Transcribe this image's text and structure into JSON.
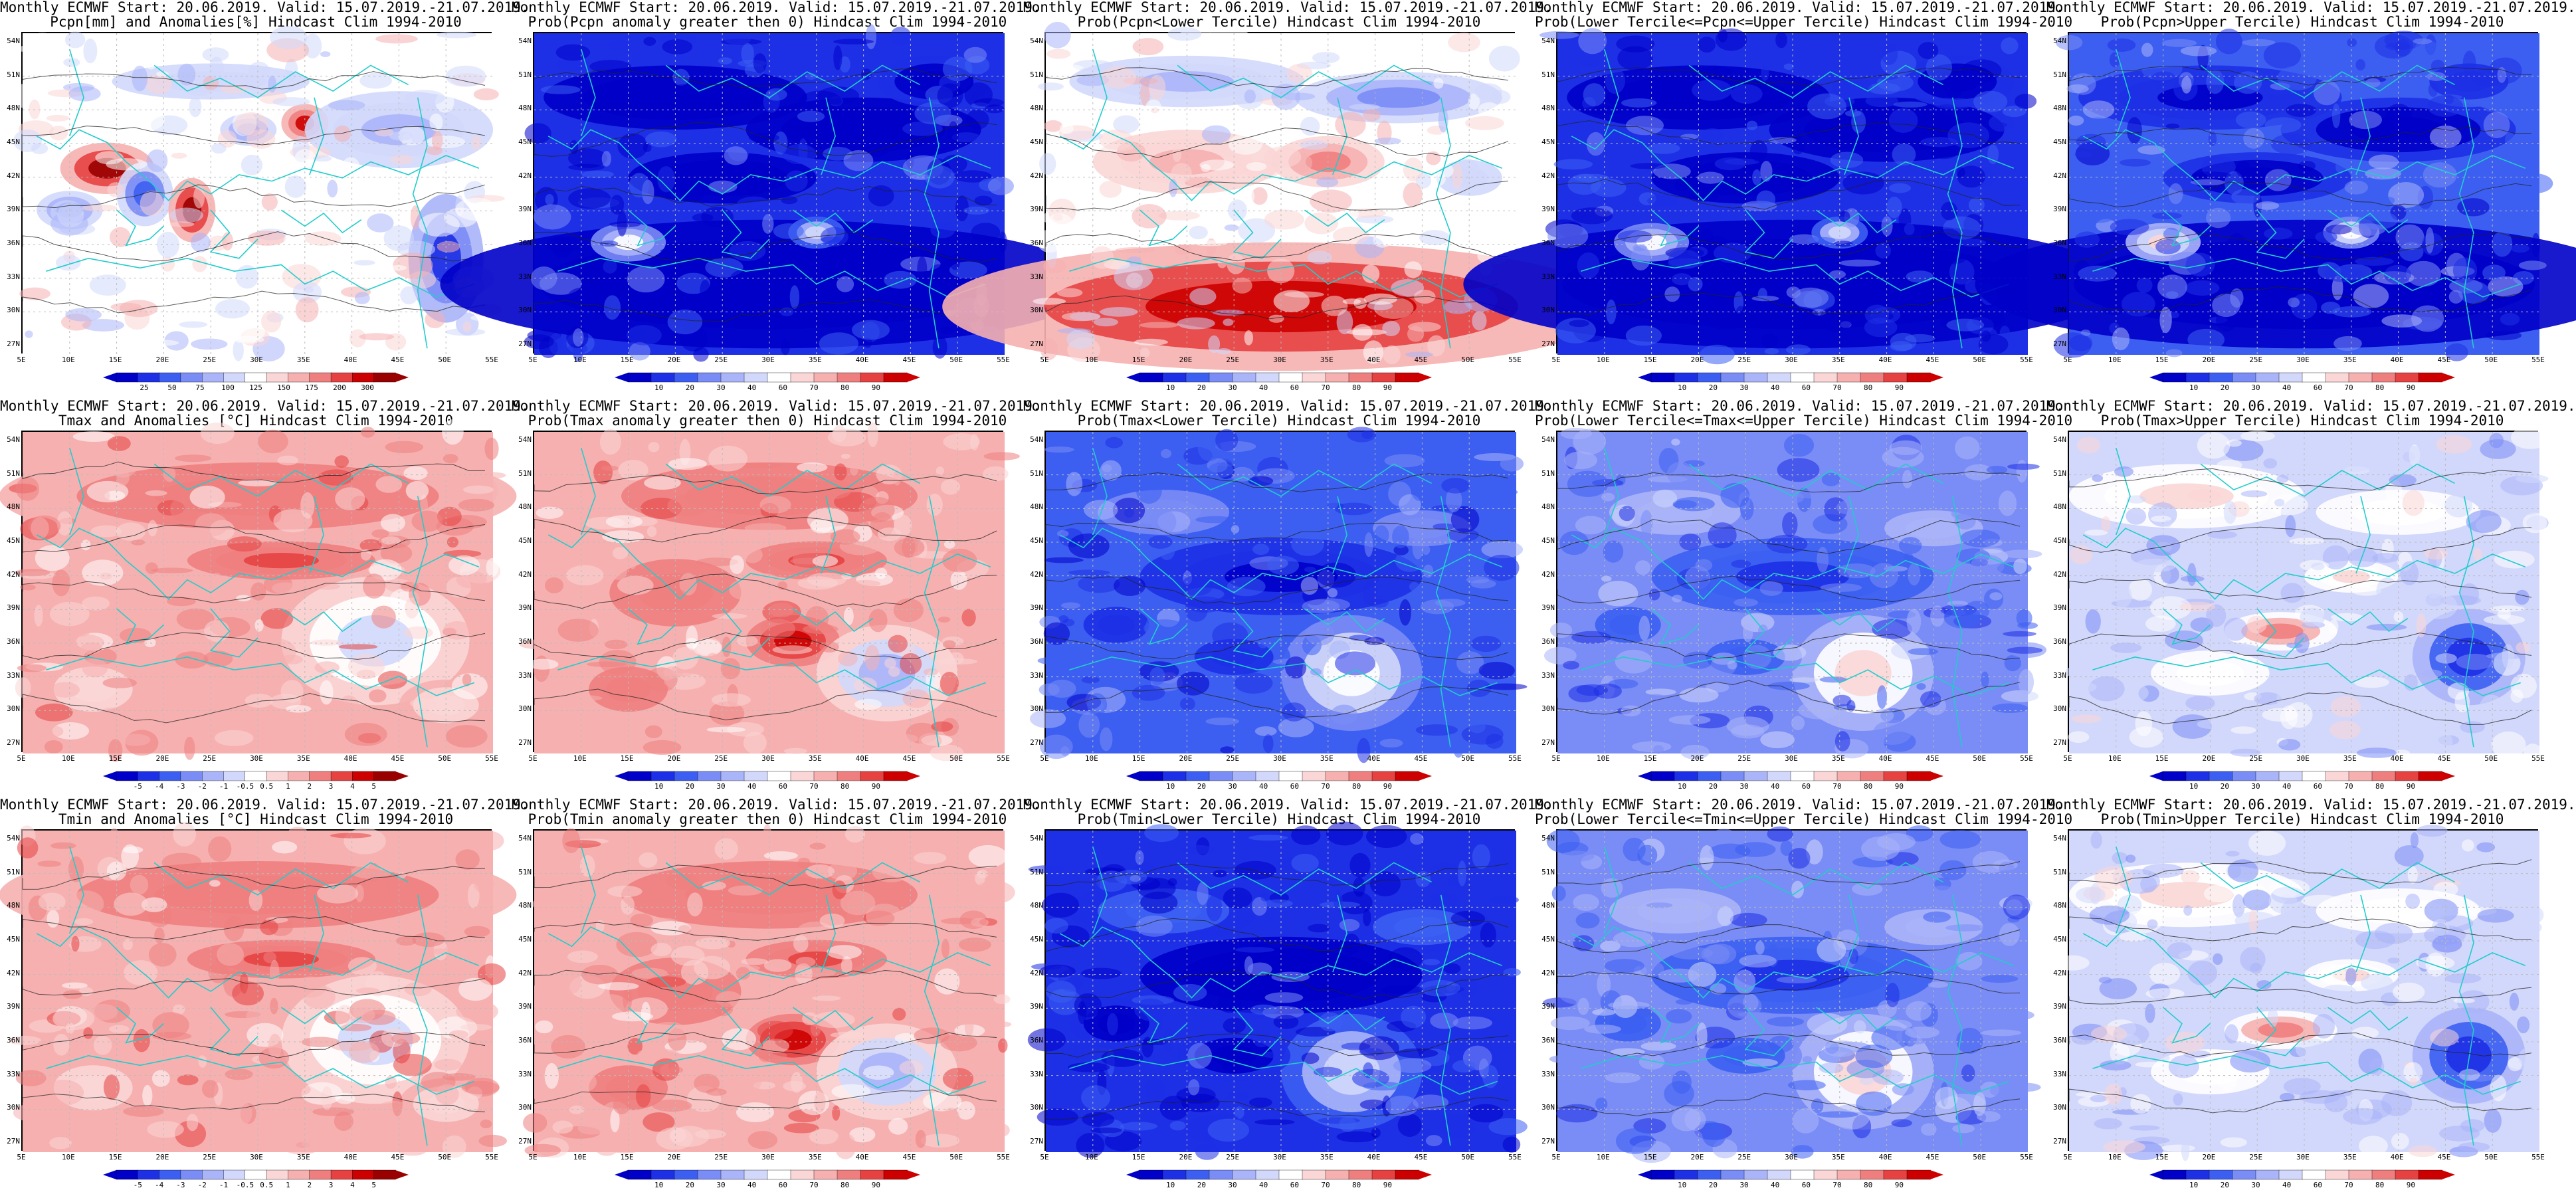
{
  "palettes": {
    "anom": [
      "#0000c8",
      "#1d30e6",
      "#3c5ff2",
      "#7a8cf5",
      "#aab4f9",
      "#d2d8fb",
      "#ffffff",
      "#fbd6d6",
      "#f6b0b0",
      "#ef7f7f",
      "#e64242",
      "#cc0000",
      "#990000"
    ],
    "prob": [
      "#0000c8",
      "#1d30e6",
      "#3c5ff2",
      "#7a8cf5",
      "#aab4f9",
      "#d2d8fb",
      "#ffffff",
      "#fbd6d6",
      "#f6b0b0",
      "#ef7f7f",
      "#e64242",
      "#cc0000"
    ]
  },
  "colors": {
    "coast": "#22cccc",
    "contour": "#222222",
    "grid": "#bbbbbb"
  },
  "lat_labels": [
    "54N",
    "51N",
    "48N",
    "45N",
    "42N",
    "39N",
    "36N",
    "33N",
    "30N",
    "27N"
  ],
  "lon_labels": [
    "5E",
    "10E",
    "15E",
    "20E",
    "25E",
    "30E",
    "35E",
    "40E",
    "45E",
    "50E",
    "55E"
  ],
  "panels": [
    {
      "title1": "Monthly ECMWF Start: 20.06.2019. Valid: 15.07.2019.-21.07.2019.",
      "title2": "Pcpn[mm] and Anomalies[%] Hindcast Clim 1994-2010",
      "palette": "anom",
      "base": 6,
      "pattern": "pcpn_anom",
      "ticks": [
        "25",
        "50",
        "75",
        "100",
        "125",
        "150",
        "175",
        "200",
        "300"
      ]
    },
    {
      "title1": "Monthly ECMWF Start: 20.06.2019. Valid: 15.07.2019.-21.07.2019.",
      "title2": "Prob(Pcpn anomaly greater then 0) Hindcast Clim 1994-2010",
      "palette": "prob",
      "base": 1,
      "pattern": "south_low",
      "ticks": [
        "10",
        "20",
        "30",
        "40",
        "60",
        "70",
        "80",
        "90"
      ]
    },
    {
      "title1": "Monthly ECMWF Start: 20.06.2019. Valid: 15.07.2019.-21.07.2019.",
      "title2": "Prob(Pcpn<Lower Tercile) Hindcast Clim 1994-2010",
      "palette": "prob",
      "base": 6,
      "pattern": "south_high",
      "ticks": [
        "10",
        "20",
        "30",
        "40",
        "60",
        "70",
        "80",
        "90"
      ]
    },
    {
      "title1": "Monthly ECMWF Start: 20.06.2019. Valid: 15.07.2019.-21.07.2019.",
      "title2": "Prob(Lower Tercile<=Pcpn<=Upper Tercile) Hindcast Clim 1994-2010",
      "palette": "prob",
      "base": 1,
      "pattern": "south_low",
      "ticks": [
        "10",
        "20",
        "30",
        "40",
        "60",
        "70",
        "80",
        "90"
      ]
    },
    {
      "title1": "Monthly ECMWF Start: 20.06.2019. Valid: 15.07.2019.-21.07.2019.",
      "title2": "Prob(Pcpn>Upper Tercile) Hindcast Clim 1994-2010",
      "palette": "prob",
      "base": 2,
      "pattern": "south_low",
      "ticks": [
        "10",
        "20",
        "30",
        "40",
        "60",
        "70",
        "80",
        "90"
      ]
    },
    {
      "title1": "Monthly ECMWF Start: 20.06.2019. Valid: 15.07.2019.-21.07.2019.",
      "title2": "Tmax and Anomalies [°C] Hindcast Clim 1994-2010",
      "palette": "anom",
      "base": 8,
      "pattern": "warm_mild",
      "ticks": [
        "-5",
        "-4",
        "-3",
        "-2",
        "-1",
        "-0.5",
        "0.5",
        "1",
        "2",
        "3",
        "4",
        "5"
      ]
    },
    {
      "title1": "Monthly ECMWF Start: 20.06.2019. Valid: 15.07.2019.-21.07.2019.",
      "title2": "Prob(Tmax anomaly greater then 0) Hindcast Clim 1994-2010",
      "palette": "prob",
      "base": 8,
      "pattern": "warm_strong",
      "ticks": [
        "10",
        "20",
        "30",
        "40",
        "60",
        "70",
        "80",
        "90"
      ]
    },
    {
      "title1": "Monthly ECMWF Start: 20.06.2019. Valid: 15.07.2019.-21.07.2019.",
      "title2": "Prob(Tmax<Lower Tercile) Hindcast Clim 1994-2010",
      "palette": "prob",
      "base": 2,
      "pattern": "cool_mixed",
      "ticks": [
        "10",
        "20",
        "30",
        "40",
        "60",
        "70",
        "80",
        "90"
      ]
    },
    {
      "title1": "Monthly ECMWF Start: 20.06.2019. Valid: 15.07.2019.-21.07.2019.",
      "title2": "Prob(Lower Tercile<=Tmax<=Upper Tercile) Hindcast Clim 1994-2010",
      "palette": "prob",
      "base": 3,
      "pattern": "cool_mixed",
      "ticks": [
        "10",
        "20",
        "30",
        "40",
        "60",
        "70",
        "80",
        "90"
      ]
    },
    {
      "title1": "Monthly ECMWF Start: 20.06.2019. Valid: 15.07.2019.-21.07.2019.",
      "title2": "Prob(Tmax>Upper Tercile) Hindcast Clim 1994-2010",
      "palette": "prob",
      "base": 5,
      "pattern": "upper_tercile",
      "ticks": [
        "10",
        "20",
        "30",
        "40",
        "60",
        "70",
        "80",
        "90"
      ]
    },
    {
      "title1": "Monthly ECMWF Start: 20.06.2019. Valid: 15.07.2019.-21.07.2019.",
      "title2": "Tmin and Anomalies [°C] Hindcast Clim 1994-2010",
      "palette": "anom",
      "base": 8,
      "pattern": "warm_mild",
      "ticks": [
        "-5",
        "-4",
        "-3",
        "-2",
        "-1",
        "-0.5",
        "0.5",
        "1",
        "2",
        "3",
        "4",
        "5"
      ]
    },
    {
      "title1": "Monthly ECMWF Start: 20.06.2019. Valid: 15.07.2019.-21.07.2019.",
      "title2": "Prob(Tmin anomaly greater then 0) Hindcast Clim 1994-2010",
      "palette": "prob",
      "base": 8,
      "pattern": "warm_strong",
      "ticks": [
        "10",
        "20",
        "30",
        "40",
        "60",
        "70",
        "80",
        "90"
      ]
    },
    {
      "title1": "Monthly ECMWF Start: 20.06.2019. Valid: 15.07.2019.-21.07.2019.",
      "title2": "Prob(Tmin<Lower Tercile) Hindcast Clim 1994-2010",
      "palette": "prob",
      "base": 1,
      "pattern": "cool_mixed",
      "ticks": [
        "10",
        "20",
        "30",
        "40",
        "60",
        "70",
        "80",
        "90"
      ]
    },
    {
      "title1": "Monthly ECMWF Start: 20.06.2019. Valid: 15.07.2019.-21.07.2019.",
      "title2": "Prob(Lower Tercile<=Tmin<=Upper Tercile) Hindcast Clim 1994-2010",
      "palette": "prob",
      "base": 3,
      "pattern": "cool_mixed",
      "ticks": [
        "10",
        "20",
        "30",
        "40",
        "60",
        "70",
        "80",
        "90"
      ]
    },
    {
      "title1": "Monthly ECMWF Start: 20.06.2019. Valid: 15.07.2019.-21.07.2019.",
      "title2": "Prob(Tmin>Upper Tercile) Hindcast Clim 1994-2010",
      "palette": "prob",
      "base": 5,
      "pattern": "upper_tercile",
      "ticks": [
        "10",
        "20",
        "30",
        "40",
        "60",
        "70",
        "80",
        "90"
      ]
    }
  ]
}
